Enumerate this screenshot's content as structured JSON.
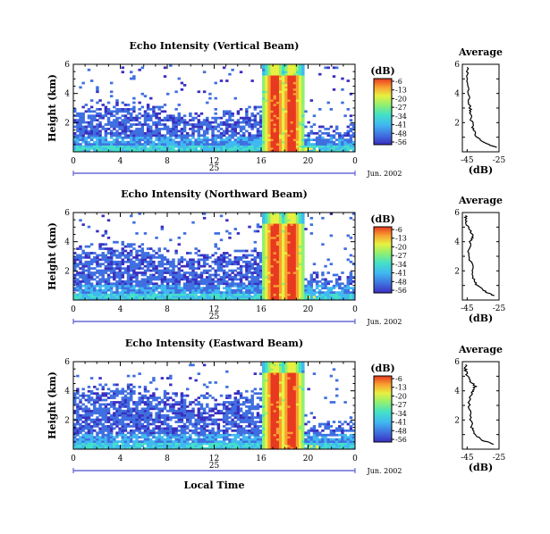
{
  "figure": {
    "xlabel": "Local Time",
    "date_label": "Jun. 2002",
    "colorbar_unit": "(dB)",
    "colorbar_ticks": [
      "-6",
      "-13",
      "-20",
      "-27",
      "-34",
      "-41",
      "-48",
      "-56"
    ],
    "colors": [
      "#3a2fc0",
      "#3f6fe0",
      "#40b8f0",
      "#42e0c8",
      "#8ff070",
      "#e8f040",
      "#f8a030",
      "#e83820"
    ]
  },
  "chart_data": [
    {
      "type": "heatmap",
      "title": "Echo Intensity (Vertical Beam)",
      "ylabel": "Height (km)",
      "x_ticks": [
        "0",
        "4",
        "8",
        "12",
        "16",
        "20",
        "0"
      ],
      "y_ticks": [
        "2",
        "4",
        "6"
      ],
      "day_label": "25",
      "xlim": [
        0,
        24
      ],
      "ylim": [
        0,
        6
      ],
      "zlim": [
        -56,
        -6
      ],
      "zunit": "dB",
      "profile": {
        "title": "Average",
        "xlabel": "(dB)",
        "x_ticks": [
          "-45",
          "-25"
        ],
        "y_ticks": [
          "2",
          "4",
          "6"
        ],
        "xlim": [
          -48,
          -25
        ],
        "ylim": [
          0,
          6
        ],
        "x": [
          -27,
          -34,
          -39,
          -41,
          -42,
          -43,
          -43,
          -44,
          -44,
          -45,
          -45
        ],
        "y": [
          0.3,
          0.6,
          1.0,
          1.5,
          2.0,
          2.5,
          3.0,
          3.8,
          4.5,
          5.2,
          5.8
        ]
      }
    },
    {
      "type": "heatmap",
      "title": "Echo Intensity (Northward Beam)",
      "ylabel": "Height (km)",
      "x_ticks": [
        "0",
        "4",
        "8",
        "12",
        "16",
        "20",
        "0"
      ],
      "y_ticks": [
        "2",
        "4",
        "6"
      ],
      "day_label": "25",
      "xlim": [
        0,
        24
      ],
      "ylim": [
        0,
        6
      ],
      "zlim": [
        -56,
        -6
      ],
      "zunit": "dB",
      "profile": {
        "title": "Average",
        "xlabel": "(dB)",
        "x_ticks": [
          "-45",
          "-25"
        ],
        "y_ticks": [
          "2",
          "4",
          "6"
        ],
        "xlim": [
          -48,
          -25
        ],
        "ylim": [
          0,
          6
        ],
        "x": [
          -28,
          -34,
          -39,
          -41,
          -42,
          -44,
          -43,
          -41,
          -44,
          -46,
          -46
        ],
        "y": [
          0.3,
          0.6,
          1.0,
          1.5,
          2.3,
          3.2,
          4.0,
          4.4,
          4.9,
          5.4,
          5.8
        ]
      }
    },
    {
      "type": "heatmap",
      "title": "Echo Intensity (Eastward Beam)",
      "ylabel": "Height (km)",
      "x_ticks": [
        "0",
        "4",
        "8",
        "12",
        "16",
        "20",
        "0"
      ],
      "y_ticks": [
        "2",
        "4",
        "6"
      ],
      "day_label": "25",
      "xlim": [
        0,
        24
      ],
      "ylim": [
        0,
        6
      ],
      "zlim": [
        -56,
        -6
      ],
      "zunit": "dB",
      "profile": {
        "title": "Average",
        "xlabel": "(dB)",
        "x_ticks": [
          "-45",
          "-25"
        ],
        "y_ticks": [
          "2",
          "4",
          "6"
        ],
        "xlim": [
          -48,
          -25
        ],
        "ylim": [
          0,
          6
        ],
        "x": [
          -28,
          -35,
          -40,
          -42,
          -43,
          -44,
          -42,
          -40,
          -44,
          -46,
          -46
        ],
        "y": [
          0.3,
          0.6,
          1.0,
          1.5,
          2.3,
          3.2,
          3.9,
          4.3,
          4.8,
          5.4,
          5.8
        ]
      }
    }
  ]
}
